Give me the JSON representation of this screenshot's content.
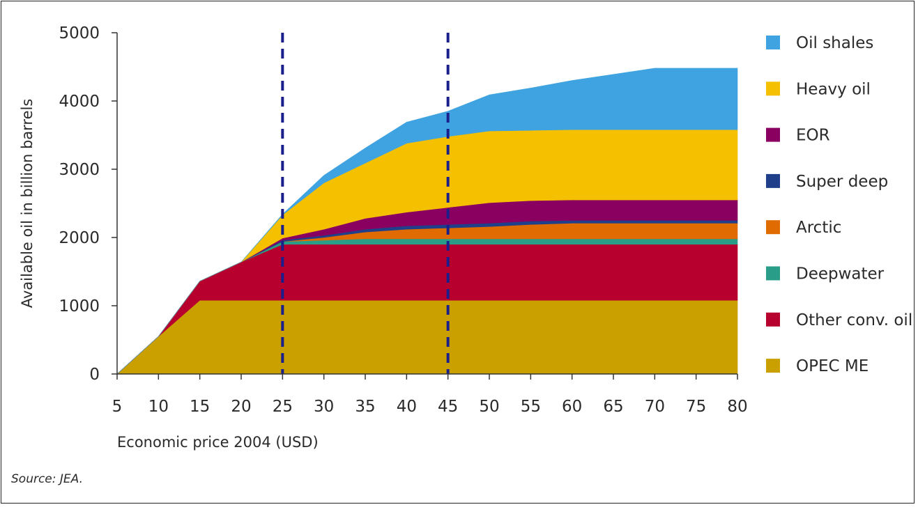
{
  "chart_data": {
    "type": "area",
    "stacked": true,
    "title": "",
    "xlabel": "Economic price 2004 (USD)",
    "ylabel": "Available oil in billion barrels",
    "x": [
      5,
      10,
      15,
      20,
      25,
      30,
      35,
      40,
      45,
      50,
      55,
      60,
      65,
      70,
      75,
      80
    ],
    "xlim": [
      5,
      80
    ],
    "ylim": [
      0,
      5000
    ],
    "xticks": [
      5,
      10,
      15,
      20,
      25,
      30,
      35,
      40,
      45,
      50,
      55,
      60,
      65,
      70,
      75,
      80
    ],
    "yticks": [
      0,
      1000,
      2000,
      3000,
      4000,
      5000
    ],
    "grid": false,
    "legend_position": "right",
    "vertical_lines": [
      {
        "x": 25,
        "style": "dashed",
        "color": "#1a1f8c"
      },
      {
        "x": 45,
        "style": "dashed",
        "color": "#1a1f8c"
      }
    ],
    "series": [
      {
        "name": "OPEC ME",
        "color": "#c9a000",
        "values": [
          0,
          550,
          1080,
          1080,
          1080,
          1080,
          1080,
          1080,
          1080,
          1080,
          1080,
          1080,
          1080,
          1080,
          1080,
          1080
        ]
      },
      {
        "name": "Other conv. oil",
        "color": "#b8002e",
        "values": [
          0,
          0,
          280,
          560,
          820,
          820,
          820,
          820,
          820,
          820,
          820,
          820,
          820,
          820,
          820,
          820
        ]
      },
      {
        "name": "Deepwater",
        "color": "#2a9d88",
        "values": [
          0,
          0,
          0,
          0,
          40,
          60,
          80,
          80,
          80,
          80,
          80,
          80,
          80,
          80,
          80,
          80
        ]
      },
      {
        "name": "Arctic",
        "color": "#e06b00",
        "values": [
          0,
          0,
          0,
          0,
          0,
          40,
          100,
          140,
          160,
          180,
          210,
          230,
          230,
          230,
          230,
          230
        ]
      },
      {
        "name": "Super deep",
        "color": "#1f3f8a",
        "values": [
          0,
          0,
          0,
          0,
          20,
          30,
          40,
          50,
          50,
          50,
          50,
          40,
          40,
          40,
          40,
          40
        ]
      },
      {
        "name": "EOR",
        "color": "#8a0060",
        "values": [
          0,
          0,
          0,
          0,
          30,
          90,
          160,
          200,
          250,
          300,
          300,
          300,
          300,
          300,
          300,
          300
        ]
      },
      {
        "name": "Heavy oil",
        "color": "#f5c000",
        "values": [
          0,
          0,
          0,
          0,
          340,
          680,
          810,
          1010,
          1040,
          1050,
          1030,
          1030,
          1030,
          1030,
          1030,
          1030
        ]
      },
      {
        "name": "Oil shales",
        "color": "#3ea3e0",
        "values": [
          0,
          0,
          0,
          0,
          10,
          110,
          220,
          310,
          370,
          530,
          620,
          720,
          810,
          900,
          900,
          900
        ]
      }
    ],
    "legend_order": [
      "Oil shales",
      "Heavy oil",
      "EOR",
      "Super deep",
      "Arctic",
      "Deepwater",
      "Other conv. oil",
      "OPEC ME"
    ]
  },
  "source": "Source: JEA."
}
